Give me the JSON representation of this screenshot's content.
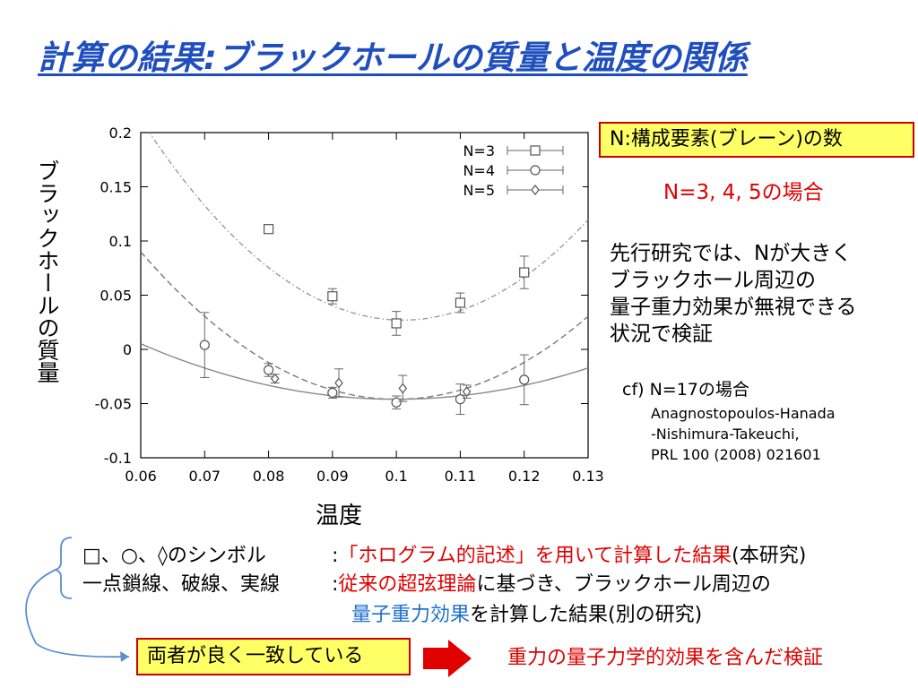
{
  "title": "計算の結果:ブラックホールの質量と温度の関係",
  "chart_data": {
    "type": "scatter",
    "xlabel": "温度",
    "ylabel": "ブラックホールの質量",
    "xlim": [
      0.06,
      0.13
    ],
    "ylim": [
      -0.1,
      0.2
    ],
    "xticks": [
      "0.06",
      "0.07",
      "0.08",
      "0.09",
      "0.1",
      "0.11",
      "0.12",
      "0.13"
    ],
    "yticks": [
      "-0.1",
      "-0.05",
      "0",
      "0.05",
      "0.1",
      "0.15",
      "0.2"
    ],
    "grid": false,
    "legend_position": "top-right",
    "series": [
      {
        "name": "N=3",
        "marker": "square",
        "points": [
          {
            "x": 0.08,
            "y": 0.111,
            "err": 0.004
          },
          {
            "x": 0.09,
            "y": 0.049,
            "err": 0.007
          },
          {
            "x": 0.1,
            "y": 0.024,
            "err": 0.011
          },
          {
            "x": 0.11,
            "y": 0.043,
            "err": 0.009
          },
          {
            "x": 0.12,
            "y": 0.071,
            "err": 0.015
          }
        ]
      },
      {
        "name": "N=4",
        "marker": "circle",
        "points": [
          {
            "x": 0.07,
            "y": 0.004,
            "err": 0.03
          },
          {
            "x": 0.08,
            "y": -0.019,
            "err": 0.006
          },
          {
            "x": 0.09,
            "y": -0.04,
            "err": 0.005
          },
          {
            "x": 0.1,
            "y": -0.049,
            "err": 0.006
          },
          {
            "x": 0.11,
            "y": -0.046,
            "err": 0.014
          },
          {
            "x": 0.12,
            "y": -0.028,
            "err": 0.023
          }
        ]
      },
      {
        "name": "N=5",
        "marker": "diamond",
        "points": [
          {
            "x": 0.081,
            "y": -0.027,
            "err": 0.004
          },
          {
            "x": 0.091,
            "y": -0.031,
            "err": 0.013
          },
          {
            "x": 0.101,
            "y": -0.036,
            "err": 0.012
          },
          {
            "x": 0.111,
            "y": -0.039,
            "err": 0.006
          }
        ]
      }
    ],
    "fit_curves": [
      {
        "style": "dash-dot",
        "center": 0.101,
        "min": 0.027,
        "curvature": 110.0
      },
      {
        "style": "dashed",
        "center": 0.1,
        "min": -0.046,
        "curvature": 85.0
      },
      {
        "style": "solid",
        "center": 0.1,
        "min": -0.046,
        "curvature": 32.0
      }
    ]
  },
  "n_definition": "N:構成要素(ブレーン)の数",
  "n_cases": "N=3, 4, 5の場合",
  "prior_work": [
    "先行研究では、Nが大きく",
    "ブラックホール周辺の",
    "量子重力効果が無視できる",
    "状況で検証"
  ],
  "cf_line": "cf) N=17の場合",
  "reference": [
    "Anagnostopoulos-Hanada",
    "-Nishimura-Takeuchi,",
    "PRL 100 (2008) 021601"
  ],
  "notes": {
    "row1_label": "□、○、◊のシンボル",
    "row1_colon": ":",
    "row1_red": "「ホログラム的記述」を用いて計算した結果",
    "row1_rest": "(本研究)",
    "row2_label": "一点鎖線、破線、実線",
    "row2_colon": ":",
    "row2_red": "従来の超弦理論",
    "row2_rest": "に基づき、ブラックホール周辺の",
    "row3_blue": "量子重力効果",
    "row3_rest": "を計算した結果(別の研究)"
  },
  "agreement": "両者が良く一致している",
  "conclusion": "重力の量子力学的効果を含んだ検証",
  "colors": {
    "title": "#1f4fbf",
    "highlight_bg": "#ffff66",
    "highlight_border": "#cc0000",
    "red_text": "#e00000",
    "blue_text": "#1f6fcf",
    "arrow": "#e00000",
    "connector": "#5b8fd0"
  }
}
